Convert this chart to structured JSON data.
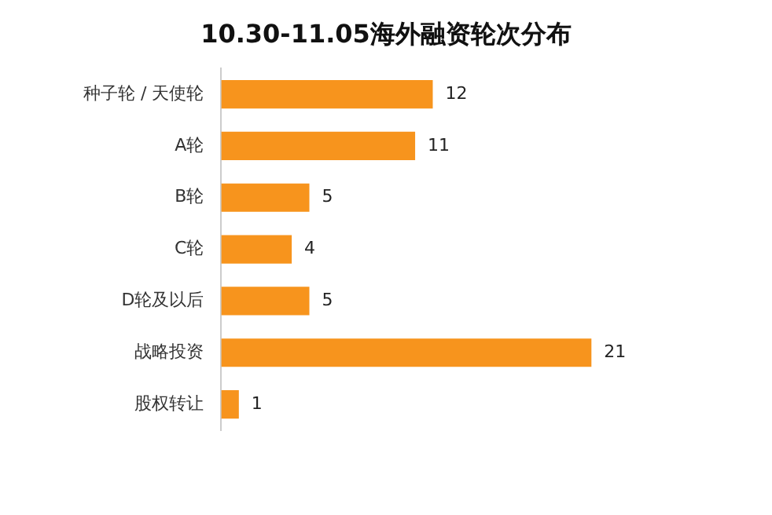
{
  "chart_data": {
    "type": "bar",
    "orientation": "horizontal",
    "title": "10.30-11.05海外融资轮次分布",
    "categories": [
      "种子轮 / 天使轮",
      "A轮",
      "B轮",
      "C轮",
      "D轮及以后",
      "战略投资",
      "股权转让"
    ],
    "values": [
      12,
      11,
      5,
      4,
      5,
      21,
      1
    ],
    "color": "#f7941d",
    "data_labels": true
  }
}
